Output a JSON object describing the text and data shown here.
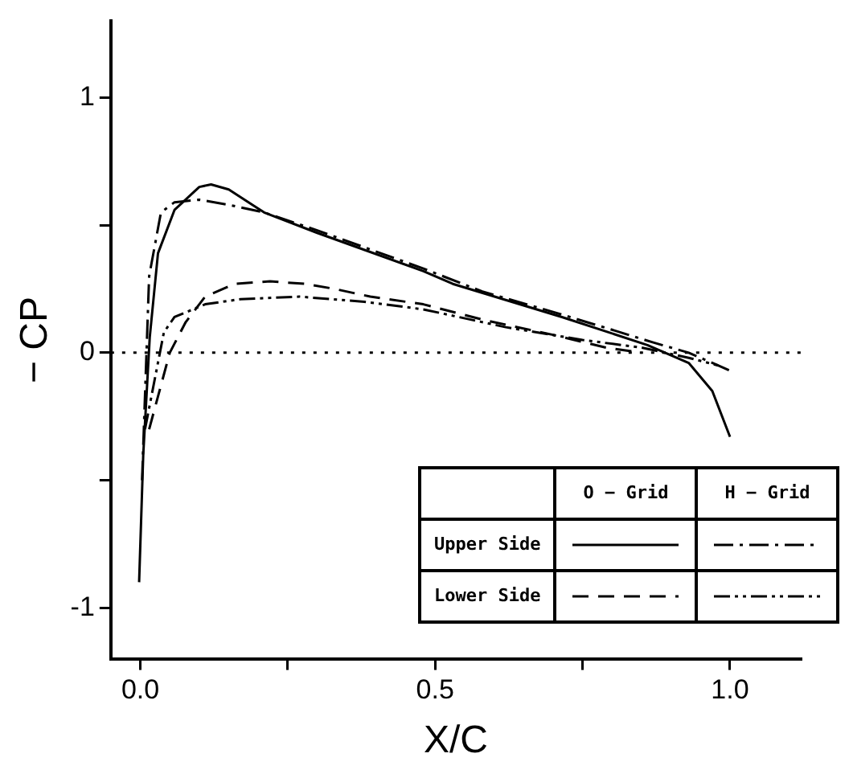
{
  "chart_data": {
    "type": "line",
    "xlabel": "X/C",
    "ylabel": "− CP",
    "xlim": [
      -0.05,
      1.12
    ],
    "ylim": [
      -1.2,
      1.3
    ],
    "xticks": [
      {
        "value": 0,
        "label": "0.0"
      },
      {
        "value": 0.25,
        "label": null
      },
      {
        "value": 0.5,
        "label": "0.5"
      },
      {
        "value": 0.75,
        "label": null
      },
      {
        "value": 1,
        "label": "1.0"
      }
    ],
    "yticks": [
      -1,
      {
        "value": -0.5,
        "label": null
      },
      0,
      {
        "value": 0.5,
        "label": null
      },
      1
    ],
    "grid": false,
    "marker": "none",
    "annotations": [
      "O − Grid",
      "H − Grid",
      "Upper Side",
      "Lower Side"
    ],
    "ref_lines": [
      {
        "axis": "y",
        "value": 0,
        "color": "#000000",
        "line_style": "dotted"
      }
    ],
    "series": [
      {
        "color": "#000000",
        "line_style": "solid",
        "x": [
          -0.002,
          0.005,
          0.016,
          0.03,
          0.058,
          0.1,
          0.12,
          0.15,
          0.21,
          0.3,
          0.48,
          0.53,
          0.715,
          0.86,
          0.93,
          0.97,
          1.0
        ],
        "values": [
          -0.9,
          -0.4,
          0.06,
          0.39,
          0.56,
          0.65,
          0.66,
          0.64,
          0.55,
          0.47,
          0.32,
          0.27,
          0.14,
          0.03,
          -0.04,
          -0.15,
          -0.33
        ]
      },
      {
        "color": "#000000",
        "line_style": "dashed",
        "x": [
          0.015,
          0.05,
          0.077,
          0.11,
          0.16,
          0.22,
          0.28,
          0.33,
          0.39,
          0.48,
          0.58,
          0.7,
          0.79,
          0.85
        ],
        "values": [
          -0.3,
          0,
          0.12,
          0.22,
          0.27,
          0.28,
          0.27,
          0.25,
          0.22,
          0.19,
          0.13,
          0.07,
          0.02,
          0
        ]
      },
      {
        "color": "#000000",
        "line_style": "dashdot",
        "x": [
          0.003,
          0.015,
          0.035,
          0.058,
          0.1,
          0.15,
          0.21,
          0.3,
          0.48,
          0.58,
          0.7,
          0.8,
          0.87,
          0.93,
          1.0
        ],
        "values": [
          -0.5,
          0.3,
          0.55,
          0.59,
          0.6,
          0.58,
          0.55,
          0.48,
          0.33,
          0.24,
          0.16,
          0.09,
          0.04,
          0,
          -0.07
        ]
      },
      {
        "color": "#000000",
        "line_style": "dashdotdot",
        "x": [
          0.008,
          0.04,
          0.058,
          0.11,
          0.17,
          0.27,
          0.38,
          0.48,
          0.62,
          0.75,
          0.85,
          0.93,
          0.98
        ],
        "values": [
          -0.3,
          0.08,
          0.14,
          0.19,
          0.21,
          0.22,
          0.2,
          0.17,
          0.1,
          0.05,
          0.02,
          -0.02,
          -0.05
        ]
      }
    ]
  }
}
